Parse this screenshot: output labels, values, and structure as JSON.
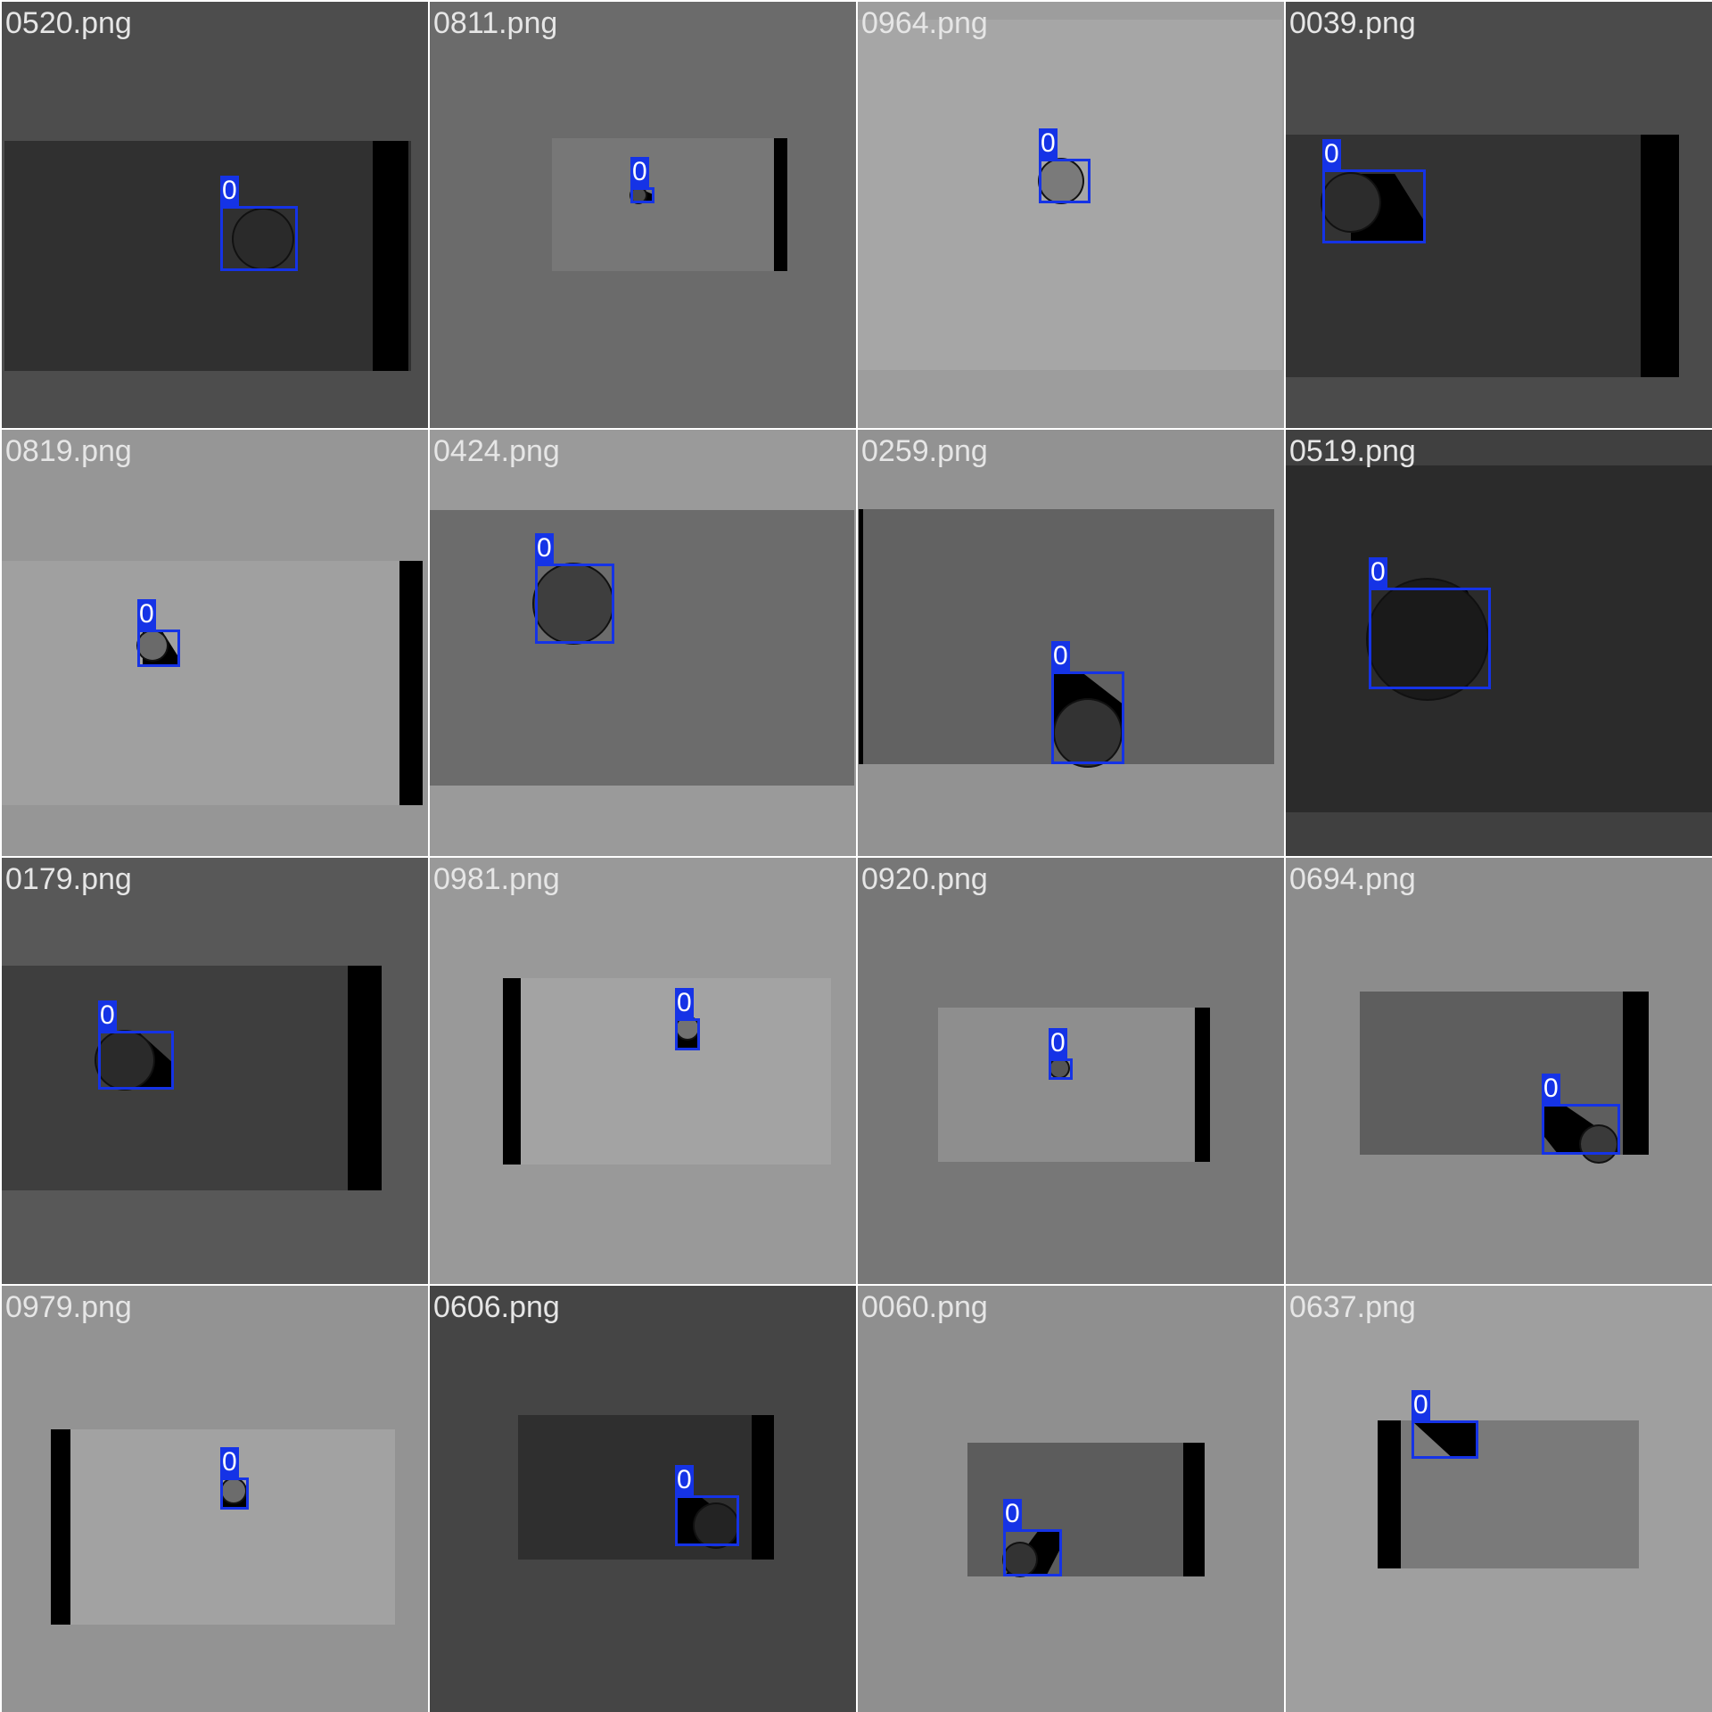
{
  "tiles": [
    {
      "filename": "0520.png",
      "background": "#4d4d4d",
      "tray_color": "#303030",
      "disc_color": "#2a2a2a",
      "detections": [
        {
          "class_label": "0"
        }
      ]
    },
    {
      "filename": "0811.png",
      "background": "#6b6b6b",
      "tray_color": "#777777",
      "disc_color": "#4a4a4a",
      "detections": [
        {
          "class_label": "0"
        }
      ]
    },
    {
      "filename": "0964.png",
      "background": "#9d9d9d",
      "tray_color": "#a6a6a6",
      "disc_color": "#7a7a7a",
      "detections": [
        {
          "class_label": "0"
        }
      ]
    },
    {
      "filename": "0039.png",
      "background": "#4b4b4b",
      "tray_color": "#333333",
      "disc_color": "#2c2c2c",
      "detections": [
        {
          "class_label": "0"
        }
      ]
    },
    {
      "filename": "0819.png",
      "background": "#969696",
      "tray_color": "#a0a0a0",
      "disc_color": "#6a6a6a",
      "detections": [
        {
          "class_label": "0"
        }
      ]
    },
    {
      "filename": "0424.png",
      "background": "#9a9a9a",
      "tray_color": "#6c6c6c",
      "disc_color": "#3e3e3e",
      "detections": [
        {
          "class_label": "0"
        }
      ]
    },
    {
      "filename": "0259.png",
      "background": "#929292",
      "tray_color": "#626262",
      "disc_color": "#333333",
      "detections": [
        {
          "class_label": "0"
        }
      ]
    },
    {
      "filename": "0519.png",
      "background": "#404040",
      "tray_color": "#2b2b2b",
      "disc_color": "#1a1a1a",
      "detections": [
        {
          "class_label": "0"
        }
      ]
    },
    {
      "filename": "0179.png",
      "background": "#585858",
      "tray_color": "#3e3e3e",
      "disc_color": "#2a2a2a",
      "detections": [
        {
          "class_label": "0"
        }
      ]
    },
    {
      "filename": "0981.png",
      "background": "#999999",
      "tray_color": "#a3a3a3",
      "disc_color": "#727272",
      "detections": [
        {
          "class_label": "0"
        }
      ]
    },
    {
      "filename": "0920.png",
      "background": "#777777",
      "tray_color": "#8e8e8e",
      "disc_color": "#555555",
      "detections": [
        {
          "class_label": "0"
        }
      ]
    },
    {
      "filename": "0694.png",
      "background": "#8c8c8c",
      "tray_color": "#5e5e5e",
      "disc_color": "#3a3a3a",
      "detections": [
        {
          "class_label": "0"
        }
      ]
    },
    {
      "filename": "0979.png",
      "background": "#939393",
      "tray_color": "#a2a2a2",
      "disc_color": "#6c6c6c",
      "detections": [
        {
          "class_label": "0"
        }
      ]
    },
    {
      "filename": "0606.png",
      "background": "#454545",
      "tray_color": "#2f2f2f",
      "disc_color": "#232323",
      "detections": [
        {
          "class_label": "0"
        }
      ]
    },
    {
      "filename": "0060.png",
      "background": "#8f8f8f",
      "tray_color": "#5c5c5c",
      "disc_color": "#333333",
      "detections": [
        {
          "class_label": "0"
        }
      ]
    },
    {
      "filename": "0637.png",
      "background": "#9f9f9f",
      "tray_color": "#7a7a7a",
      "disc_color": "#444444",
      "detections": [
        {
          "class_label": "0"
        }
      ]
    }
  ]
}
